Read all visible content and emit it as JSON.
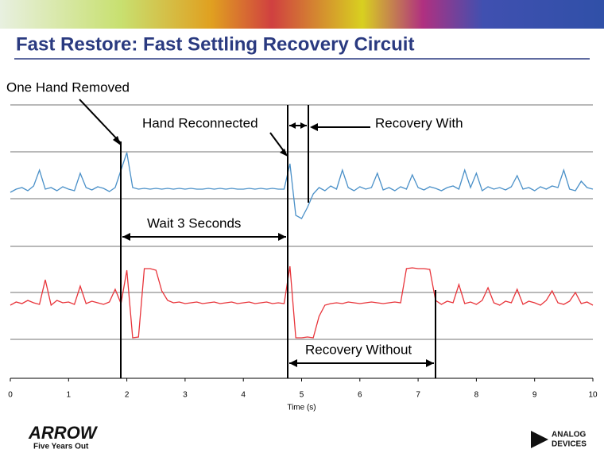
{
  "header": {
    "title": "Fast Restore: Fast Settling Recovery Circuit"
  },
  "logos": {
    "left": "ARROW",
    "left_tagline": "Five Years Out",
    "right_line1": "ANALOG",
    "right_line2": "DEVICES"
  },
  "chart_data": {
    "type": "line",
    "xlabel": "Time (s)",
    "annotations": [
      "One Hand Removed",
      "Hand Reconnected",
      "Recovery With",
      "Wait 3 Seconds",
      "Recovery Without"
    ],
    "xlim": [
      0,
      10
    ],
    "xticks": [
      0,
      1,
      2,
      3,
      4,
      5,
      6,
      7,
      8,
      9,
      10
    ],
    "ylim": [
      0,
      344
    ],
    "x": [
      0,
      0.1,
      0.2,
      0.3,
      0.4,
      0.5,
      0.6,
      0.7,
      0.8,
      0.9,
      1,
      1.1,
      1.2,
      1.3,
      1.4,
      1.5,
      1.6,
      1.7,
      1.8,
      1.9,
      2,
      2.1,
      2.2,
      2.3,
      2.4,
      2.5,
      2.6,
      2.7,
      2.8,
      2.9,
      3,
      3.1,
      3.2,
      3.3,
      3.4,
      3.5,
      3.6,
      3.7,
      3.8,
      3.9,
      4,
      4.1,
      4.2,
      4.3,
      4.4,
      4.5,
      4.6,
      4.7,
      4.8,
      4.9,
      5,
      5.1,
      5.2,
      5.3,
      5.4,
      5.5,
      5.6,
      5.7,
      5.8,
      5.9,
      6,
      6.1,
      6.2,
      6.3,
      6.4,
      6.5,
      6.6,
      6.7,
      6.8,
      6.9,
      7,
      7.1,
      7.2,
      7.3,
      7.4,
      7.5,
      7.6,
      7.7,
      7.8,
      7.9,
      8,
      8.1,
      8.2,
      8.3,
      8.4,
      8.5,
      8.6,
      8.7,
      8.8,
      8.9,
      9,
      9.1,
      9.2,
      9.3,
      9.4,
      9.5,
      9.6,
      9.7,
      9.8,
      9.9,
      10
    ],
    "series": [
      {
        "color": "#4a90c8",
        "values": [
          234,
          238,
          240,
          236,
          242,
          262,
          238,
          240,
          236,
          241,
          238,
          236,
          258,
          240,
          237,
          241,
          239,
          235,
          240,
          262,
          284,
          240,
          238,
          239,
          238,
          239,
          238,
          239,
          238,
          239,
          238,
          239,
          238,
          238,
          239,
          238,
          239,
          238,
          239,
          238,
          238,
          239,
          238,
          239,
          238,
          239,
          238,
          238,
          270,
          205,
          201,
          215,
          232,
          240,
          236,
          242,
          238,
          262,
          240,
          236,
          241,
          238,
          240,
          258,
          237,
          240,
          236,
          241,
          238,
          256,
          240,
          237,
          241,
          239,
          236,
          240,
          242,
          238,
          262,
          240,
          258,
          236,
          241,
          238,
          240,
          237,
          241,
          255,
          238,
          240,
          236,
          241,
          238,
          242,
          240,
          262,
          238,
          236,
          248,
          240,
          238
        ]
      },
      {
        "color": "#e8343a",
        "values": [
          92,
          96,
          94,
          98,
          95,
          93,
          124,
          92,
          98,
          95,
          96,
          93,
          116,
          94,
          97,
          95,
          93,
          96,
          112,
          94,
          136,
          51,
          52,
          138,
          138,
          136,
          110,
          98,
          95,
          96,
          94,
          95,
          96,
          94,
          95,
          96,
          94,
          95,
          96,
          94,
          95,
          96,
          94,
          95,
          96,
          94,
          95,
          94,
          141,
          51,
          51,
          52,
          51,
          78,
          92,
          94,
          95,
          94,
          96,
          95,
          94,
          95,
          96,
          95,
          94,
          95,
          96,
          95,
          138,
          139,
          138,
          138,
          137,
          98,
          93,
          97,
          95,
          118,
          94,
          96,
          93,
          98,
          114,
          95,
          92,
          97,
          95,
          112,
          93,
          97,
          95,
          92,
          98,
          110,
          95,
          93,
          97,
          108,
          94,
          96,
          92
        ]
      }
    ]
  }
}
